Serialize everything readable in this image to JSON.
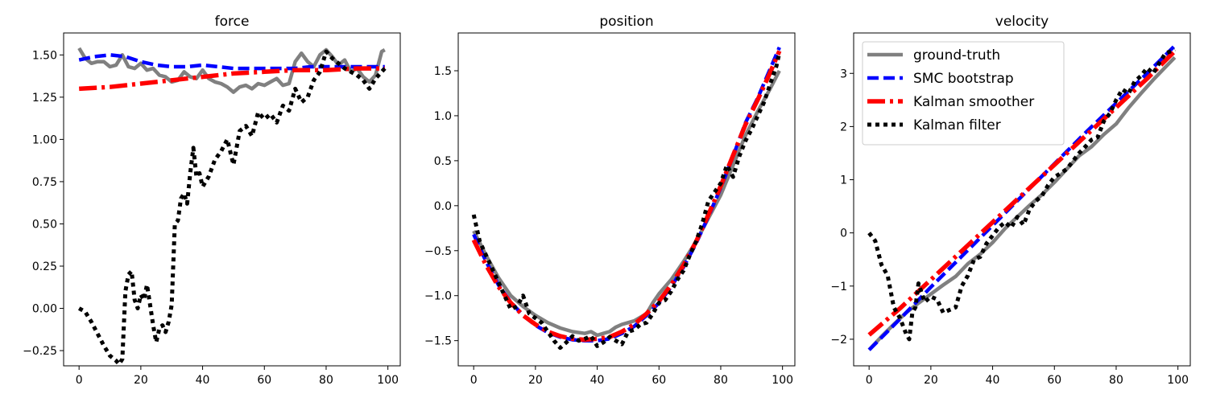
{
  "chart_data": [
    {
      "type": "line",
      "title": "force",
      "xlim": [
        -5,
        104
      ],
      "ylim": [
        -0.34,
        1.63
      ],
      "xticks": [
        0,
        20,
        40,
        60,
        80,
        100
      ],
      "yticks": [
        -0.25,
        0.0,
        0.25,
        0.5,
        0.75,
        1.0,
        1.25,
        1.5
      ],
      "ytick_labels": [
        "−0.25",
        "0.00",
        "0.25",
        "0.50",
        "0.75",
        "1.00",
        "1.25",
        "1.50"
      ],
      "grid": false,
      "series": [
        {
          "key": "gt",
          "x": [
            0,
            2,
            4,
            6,
            8,
            10,
            12,
            14,
            16,
            18,
            20,
            22,
            24,
            26,
            28,
            30,
            32,
            34,
            36,
            38,
            40,
            42,
            44,
            46,
            48,
            50,
            52,
            54,
            56,
            58,
            60,
            62,
            64,
            66,
            68,
            70,
            72,
            74,
            76,
            78,
            80,
            82,
            84,
            86,
            88,
            90,
            92,
            94,
            96,
            98,
            99
          ],
          "y": [
            1.54,
            1.48,
            1.45,
            1.46,
            1.46,
            1.43,
            1.44,
            1.5,
            1.43,
            1.42,
            1.45,
            1.41,
            1.42,
            1.38,
            1.37,
            1.34,
            1.35,
            1.4,
            1.37,
            1.36,
            1.41,
            1.36,
            1.34,
            1.33,
            1.31,
            1.28,
            1.31,
            1.32,
            1.3,
            1.33,
            1.32,
            1.34,
            1.36,
            1.32,
            1.33,
            1.46,
            1.51,
            1.46,
            1.43,
            1.5,
            1.53,
            1.49,
            1.44,
            1.47,
            1.4,
            1.42,
            1.37,
            1.34,
            1.38,
            1.52,
            1.53
          ]
        },
        {
          "key": "smc",
          "x": [
            0,
            5,
            10,
            15,
            20,
            25,
            30,
            35,
            40,
            45,
            50,
            55,
            60,
            65,
            70,
            75,
            80,
            85,
            90,
            95,
            99
          ],
          "y": [
            1.47,
            1.49,
            1.5,
            1.49,
            1.46,
            1.44,
            1.43,
            1.43,
            1.44,
            1.43,
            1.42,
            1.42,
            1.42,
            1.42,
            1.42,
            1.43,
            1.43,
            1.43,
            1.43,
            1.43,
            1.43
          ]
        },
        {
          "key": "ks",
          "x": [
            0,
            10,
            20,
            30,
            40,
            50,
            60,
            70,
            80,
            90,
            99
          ],
          "y": [
            1.3,
            1.31,
            1.33,
            1.35,
            1.37,
            1.39,
            1.4,
            1.41,
            1.41,
            1.42,
            1.42
          ]
        },
        {
          "key": "kf",
          "x": [
            0,
            2,
            4,
            6,
            8,
            10,
            12,
            13,
            14,
            15,
            16,
            17,
            18,
            19,
            20,
            21,
            22,
            23,
            24,
            25,
            26,
            27,
            28,
            29,
            30,
            31,
            32,
            33,
            34,
            35,
            36,
            37,
            38,
            39,
            40,
            42,
            44,
            46,
            48,
            50,
            52,
            54,
            56,
            58,
            60,
            62,
            64,
            66,
            68,
            70,
            72,
            74,
            76,
            78,
            80,
            82,
            84,
            86,
            88,
            90,
            92,
            94,
            96,
            98,
            99
          ],
          "y": [
            0.0,
            -0.02,
            -0.08,
            -0.15,
            -0.22,
            -0.28,
            -0.31,
            -0.33,
            -0.3,
            0.1,
            0.2,
            0.22,
            0.05,
            0.0,
            0.08,
            0.05,
            0.14,
            0.02,
            -0.1,
            -0.2,
            -0.12,
            -0.1,
            -0.14,
            -0.08,
            0.02,
            0.5,
            0.52,
            0.65,
            0.68,
            0.62,
            0.8,
            0.95,
            0.78,
            0.8,
            0.72,
            0.78,
            0.88,
            0.93,
            1.0,
            0.85,
            1.05,
            1.08,
            1.02,
            1.16,
            1.12,
            1.15,
            1.1,
            1.2,
            1.17,
            1.3,
            1.22,
            1.25,
            1.35,
            1.4,
            1.52,
            1.48,
            1.45,
            1.42,
            1.4,
            1.38,
            1.35,
            1.3,
            1.36,
            1.4,
            1.42
          ]
        }
      ]
    },
    {
      "type": "line",
      "title": "position",
      "xlim": [
        -5,
        104
      ],
      "ylim": [
        -1.78,
        1.92
      ],
      "xticks": [
        0,
        20,
        40,
        60,
        80,
        100
      ],
      "yticks": [
        -1.5,
        -1.0,
        -0.5,
        0.0,
        0.5,
        1.0,
        1.5
      ],
      "ytick_labels": [
        "−1.5",
        "−1.0",
        "−0.5",
        "0.0",
        "0.5",
        "1.0",
        "1.5"
      ],
      "grid": false,
      "series": [
        {
          "key": "gt",
          "x": [
            0,
            4,
            8,
            12,
            16,
            20,
            24,
            28,
            32,
            36,
            38,
            40,
            42,
            44,
            46,
            48,
            50,
            52,
            54,
            56,
            58,
            60,
            64,
            68,
            72,
            76,
            80,
            84,
            88,
            92,
            96,
            99
          ],
          "y": [
            -0.28,
            -0.55,
            -0.8,
            -1.0,
            -1.12,
            -1.22,
            -1.3,
            -1.36,
            -1.4,
            -1.42,
            -1.4,
            -1.44,
            -1.42,
            -1.4,
            -1.35,
            -1.32,
            -1.3,
            -1.28,
            -1.24,
            -1.2,
            -1.08,
            -0.98,
            -0.82,
            -0.62,
            -0.4,
            -0.14,
            0.12,
            0.45,
            0.78,
            1.05,
            1.3,
            1.5
          ]
        },
        {
          "key": "smc",
          "x": [
            0,
            4,
            8,
            12,
            16,
            20,
            24,
            28,
            32,
            36,
            40,
            44,
            48,
            52,
            56,
            60,
            64,
            68,
            72,
            76,
            80,
            84,
            88,
            92,
            96,
            99
          ],
          "y": [
            -0.32,
            -0.62,
            -0.88,
            -1.07,
            -1.22,
            -1.33,
            -1.41,
            -1.46,
            -1.49,
            -1.5,
            -1.5,
            -1.48,
            -1.42,
            -1.34,
            -1.22,
            -1.08,
            -0.9,
            -0.68,
            -0.42,
            -0.12,
            0.2,
            0.55,
            0.92,
            1.2,
            1.52,
            1.76
          ]
        },
        {
          "key": "ks",
          "x": [
            0,
            4,
            8,
            12,
            16,
            20,
            24,
            28,
            32,
            36,
            40,
            44,
            48,
            52,
            56,
            60,
            64,
            68,
            72,
            76,
            80,
            84,
            88,
            92,
            96,
            99
          ],
          "y": [
            -0.38,
            -0.66,
            -0.9,
            -1.08,
            -1.22,
            -1.32,
            -1.4,
            -1.45,
            -1.48,
            -1.49,
            -1.48,
            -1.46,
            -1.4,
            -1.32,
            -1.2,
            -1.06,
            -0.88,
            -0.66,
            -0.4,
            -0.1,
            0.22,
            0.56,
            0.9,
            1.18,
            1.48,
            1.72
          ]
        },
        {
          "key": "kf",
          "x": [
            0,
            2,
            4,
            6,
            8,
            10,
            12,
            14,
            16,
            18,
            20,
            22,
            24,
            26,
            28,
            30,
            32,
            34,
            36,
            38,
            40,
            42,
            44,
            46,
            48,
            50,
            52,
            54,
            56,
            58,
            60,
            62,
            64,
            66,
            68,
            70,
            72,
            74,
            76,
            78,
            80,
            82,
            84,
            86,
            88,
            90,
            92,
            94,
            96,
            98,
            99
          ],
          "y": [
            -0.1,
            -0.4,
            -0.55,
            -0.7,
            -0.85,
            -1.0,
            -1.15,
            -1.12,
            -1.0,
            -1.2,
            -1.25,
            -1.3,
            -1.4,
            -1.5,
            -1.58,
            -1.52,
            -1.45,
            -1.5,
            -1.48,
            -1.45,
            -1.56,
            -1.52,
            -1.46,
            -1.5,
            -1.54,
            -1.4,
            -1.38,
            -1.32,
            -1.3,
            -1.2,
            -1.08,
            -1.05,
            -0.95,
            -0.82,
            -0.72,
            -0.55,
            -0.4,
            -0.2,
            0.05,
            0.15,
            0.25,
            0.45,
            0.32,
            0.55,
            0.72,
            0.85,
            1.0,
            1.15,
            1.35,
            1.55,
            1.7
          ]
        }
      ]
    },
    {
      "type": "line",
      "title": "velocity",
      "xlim": [
        -5,
        104
      ],
      "ylim": [
        -2.5,
        3.76
      ],
      "xticks": [
        0,
        20,
        40,
        60,
        80,
        100
      ],
      "yticks": [
        -2,
        -1,
        0,
        1,
        2,
        3
      ],
      "ytick_labels": [
        "−2",
        "−1",
        "0",
        "1",
        "2",
        "3"
      ],
      "grid": false,
      "legend": "upper-left",
      "series": [
        {
          "key": "gt",
          "name": "ground-truth",
          "x": [
            0,
            4,
            8,
            12,
            16,
            20,
            24,
            28,
            32,
            36,
            40,
            44,
            48,
            52,
            56,
            60,
            64,
            68,
            72,
            76,
            80,
            84,
            88,
            92,
            96,
            99
          ],
          "y": [
            -2.2,
            -1.95,
            -1.72,
            -1.5,
            -1.32,
            -1.15,
            -0.98,
            -0.82,
            -0.58,
            -0.4,
            -0.18,
            0.08,
            0.3,
            0.52,
            0.72,
            0.95,
            1.2,
            1.45,
            1.62,
            1.85,
            2.05,
            2.35,
            2.62,
            2.88,
            3.12,
            3.3
          ]
        },
        {
          "key": "smc",
          "name": "SMC bootstrap",
          "x": [
            0,
            10,
            20,
            30,
            40,
            50,
            60,
            70,
            80,
            90,
            99
          ],
          "y": [
            -2.2,
            -1.62,
            -1.02,
            -0.44,
            0.14,
            0.72,
            1.3,
            1.88,
            2.44,
            3.0,
            3.52
          ]
        },
        {
          "key": "ks",
          "name": "Kalman smoother",
          "x": [
            0,
            10,
            20,
            30,
            40,
            50,
            60,
            70,
            80,
            90,
            99
          ],
          "y": [
            -1.92,
            -1.42,
            -0.88,
            -0.34,
            0.2,
            0.74,
            1.28,
            1.82,
            2.36,
            2.9,
            3.42
          ]
        },
        {
          "key": "kf",
          "name": "Kalman filter",
          "x": [
            0,
            2,
            4,
            6,
            8,
            10,
            12,
            13,
            14,
            15,
            16,
            18,
            20,
            22,
            24,
            26,
            28,
            30,
            32,
            34,
            36,
            38,
            40,
            42,
            44,
            46,
            48,
            50,
            52,
            54,
            56,
            58,
            60,
            62,
            64,
            66,
            68,
            70,
            72,
            74,
            76,
            78,
            80,
            82,
            84,
            86,
            88,
            90,
            92,
            94,
            96,
            98,
            99
          ],
          "y": [
            0.0,
            -0.15,
            -0.6,
            -0.8,
            -1.4,
            -1.6,
            -1.9,
            -2.0,
            -1.5,
            -1.4,
            -0.95,
            -1.3,
            -1.2,
            -1.25,
            -1.5,
            -1.45,
            -1.4,
            -1.0,
            -0.8,
            -0.5,
            -0.45,
            -0.2,
            -0.05,
            0.1,
            0.2,
            0.1,
            0.3,
            0.15,
            0.45,
            0.6,
            0.7,
            0.9,
            1.05,
            1.12,
            1.2,
            1.35,
            1.5,
            1.62,
            1.75,
            1.8,
            2.1,
            2.25,
            2.5,
            2.7,
            2.62,
            2.85,
            2.95,
            3.1,
            3.0,
            3.2,
            3.38,
            3.42,
            3.45
          ]
        }
      ]
    }
  ],
  "styles": {
    "gt": {
      "color": "#808080",
      "width": 4.5,
      "dash": ""
    },
    "smc": {
      "color": "#0000ff",
      "width": 4.5,
      "dash": "14 6"
    },
    "ks": {
      "color": "#ff0000",
      "width": 5.5,
      "dash": "22 6 4 6"
    },
    "kf": {
      "color": "#000000",
      "width": 5,
      "dash": "5 5"
    }
  }
}
